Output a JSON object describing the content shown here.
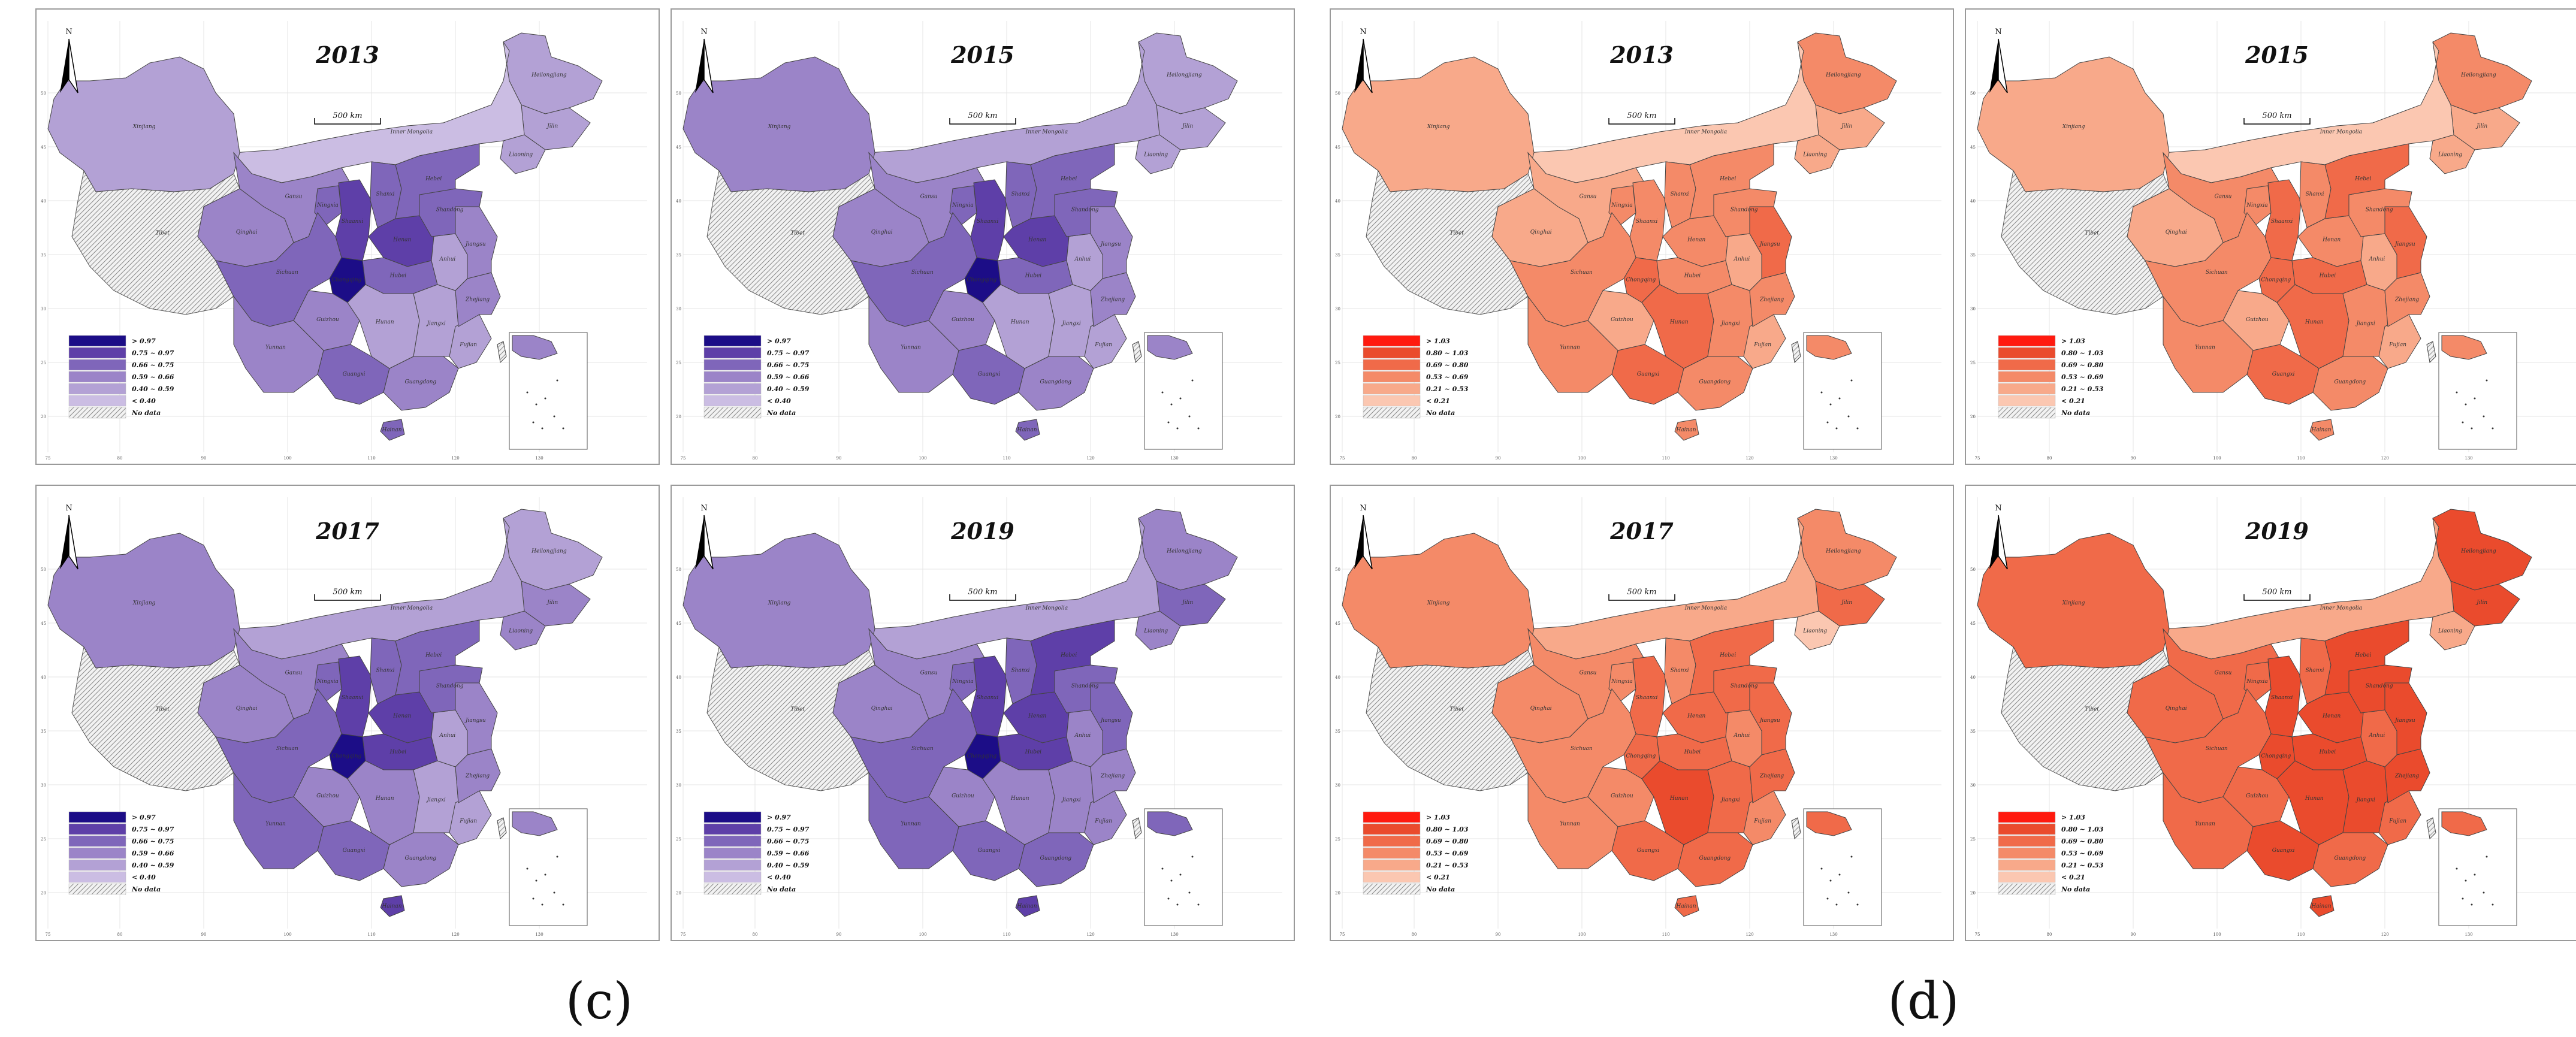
{
  "figure": {
    "panels": [
      {
        "id": "c",
        "label": "(c)",
        "palette": [
          "#e6dff0",
          "#cbbde3",
          "#b3a1d5",
          "#9b84c8",
          "#7f66ba",
          "#5e3fa8",
          "#1c0d87"
        ]
      },
      {
        "id": "d",
        "label": "(d)",
        "palette": [
          "#fde5da",
          "#fbc7b1",
          "#f8a98a",
          "#f48a68",
          "#f06a49",
          "#ea4b2d",
          "#ff1a0f"
        ]
      }
    ],
    "maps": [
      {
        "panel": "c",
        "year": "2013",
        "legend": [
          "> 0.97",
          "0.75 ~ 0.97",
          "0.66 ~ 0.75",
          "0.59 ~ 0.66",
          "0.40 ~ 0.59",
          "< 0.40",
          "No data"
        ],
        "classes": [
          2,
          2,
          2,
          1,
          2,
          3,
          4,
          5,
          4,
          3,
          4,
          6,
          5,
          4,
          3,
          3,
          4,
          3,
          2,
          2,
          2,
          3,
          2,
          3,
          4,
          4,
          4
        ]
      },
      {
        "panel": "c",
        "year": "2015",
        "legend": [
          "> 0.97",
          "0.75 ~ 0.97",
          "0.66 ~ 0.75",
          "0.59 ~ 0.66",
          "0.40 ~ 0.59",
          "< 0.40",
          "No data"
        ],
        "classes": [
          2,
          2,
          2,
          2,
          3,
          3,
          4,
          5,
          4,
          3,
          4,
          6,
          5,
          4,
          3,
          3,
          4,
          3,
          2,
          2,
          2,
          3,
          2,
          3,
          4,
          4,
          4
        ]
      },
      {
        "panel": "c",
        "year": "2017",
        "legend": [
          "> 0.97",
          "0.75 ~ 0.97",
          "0.66 ~ 0.75",
          "0.59 ~ 0.66",
          "0.40 ~ 0.59",
          "< 0.40",
          "No data"
        ],
        "classes": [
          2,
          3,
          3,
          2,
          3,
          3,
          4,
          5,
          4,
          3,
          4,
          6,
          5,
          5,
          3,
          4,
          4,
          3,
          3,
          2,
          2,
          3,
          2,
          3,
          4,
          4,
          5
        ]
      },
      {
        "panel": "c",
        "year": "2019",
        "legend": [
          "> 0.97",
          "0.75 ~ 0.97",
          "0.66 ~ 0.75",
          "0.59 ~ 0.66",
          "0.40 ~ 0.59",
          "< 0.40",
          "No data"
        ],
        "classes": [
          3,
          4,
          3,
          2,
          3,
          3,
          4,
          5,
          4,
          3,
          4,
          6,
          5,
          5,
          3,
          4,
          4,
          4,
          3,
          3,
          3,
          3,
          3,
          4,
          4,
          5,
          5
        ]
      },
      {
        "panel": "d",
        "year": "2013",
        "legend": [
          "> 1.03",
          "0.80 ~ 1.03",
          "0.69 ~ 0.80",
          "0.53 ~ 0.69",
          "0.21 ~ 0.53",
          "< 0.21",
          "No data"
        ],
        "classes": [
          3,
          2,
          2,
          1,
          2,
          2,
          3,
          3,
          3,
          2,
          3,
          4,
          3,
          3,
          2,
          3,
          4,
          3,
          4,
          3,
          2,
          3,
          2,
          4,
          3,
          3,
          3
        ]
      },
      {
        "panel": "d",
        "year": "2015",
        "legend": [
          "> 1.03",
          "0.80 ~ 1.03",
          "0.69 ~ 0.80",
          "0.53 ~ 0.69",
          "0.21 ~ 0.53",
          "< 0.21",
          "No data"
        ],
        "classes": [
          3,
          2,
          2,
          1,
          2,
          3,
          3,
          4,
          3,
          2,
          3,
          4,
          3,
          4,
          2,
          3,
          4,
          3,
          4,
          3,
          2,
          3,
          2,
          4,
          3,
          4,
          3
        ]
      },
      {
        "panel": "d",
        "year": "2017",
        "legend": [
          "> 1.03",
          "0.80 ~ 1.03",
          "0.69 ~ 0.80",
          "0.53 ~ 0.69",
          "0.21 ~ 0.53",
          "< 0.21",
          "No data"
        ],
        "classes": [
          3,
          4,
          1,
          2,
          3,
          3,
          3,
          4,
          3,
          3,
          3,
          4,
          4,
          4,
          3,
          3,
          4,
          4,
          5,
          4,
          3,
          4,
          3,
          4,
          4,
          4,
          4
        ]
      },
      {
        "panel": "d",
        "year": "2019",
        "legend": [
          "> 1.03",
          "0.80 ~ 1.03",
          "0.69 ~ 0.80",
          "0.53 ~ 0.69",
          "0.21 ~ 0.53",
          "< 0.21",
          "No data"
        ],
        "classes": [
          5,
          5,
          2,
          2,
          4,
          4,
          4,
          5,
          4,
          4,
          4,
          5,
          5,
          5,
          4,
          4,
          5,
          4,
          5,
          5,
          4,
          5,
          4,
          5,
          5,
          5,
          5
        ]
      }
    ],
    "provinces": [
      "Heilongjiang",
      "Jilin",
      "Liaoning",
      "Inner Mongolia",
      "Xinjiang",
      "Gansu",
      "Ningxia",
      "Shaanxi",
      "Shanxi",
      "Qinghai",
      "Sichuan",
      "Chongqing",
      "Henan",
      "Hubei",
      "Guizhou",
      "Yunnan",
      "Guangxi",
      "Guangdong",
      "Hunan",
      "Jiangxi",
      "Fujian",
      "Zhejiang",
      "Anhui",
      "Jiangsu",
      "Shandong",
      "Hebei",
      "Hainan"
    ],
    "no_data_region": "Tibet",
    "taiwan_label": "Taiwan",
    "scale_bar": "500 km",
    "north": "N",
    "lat_ticks": [
      "50",
      "45",
      "40",
      "35",
      "30",
      "25",
      "20"
    ],
    "lon_ticks": [
      "75",
      "80",
      "90",
      "100",
      "110",
      "120",
      "130"
    ]
  }
}
